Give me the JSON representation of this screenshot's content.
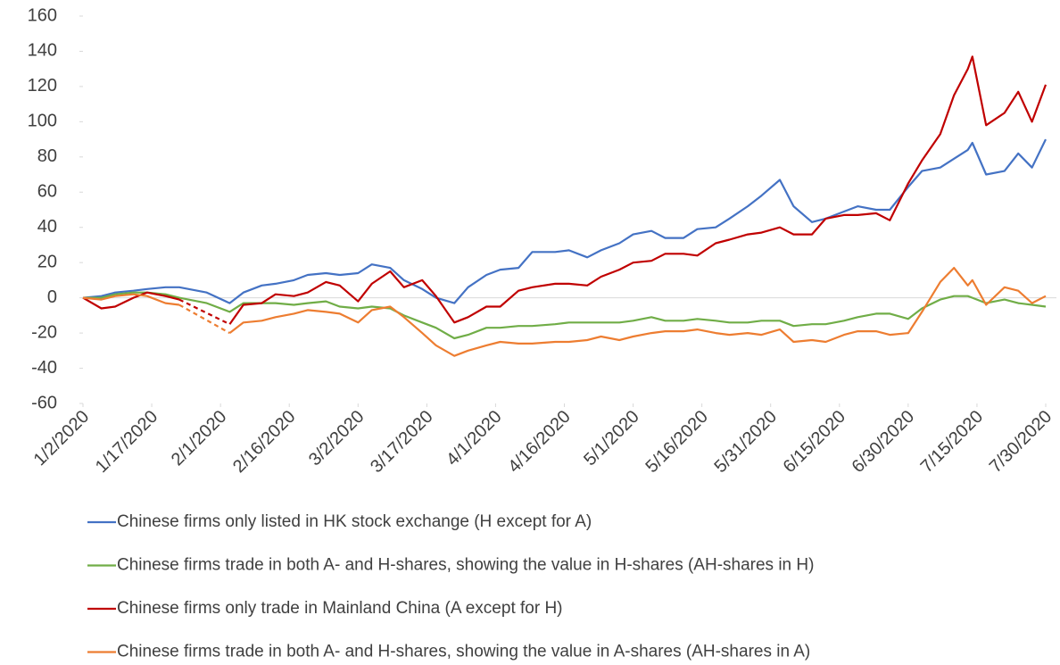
{
  "chart_data": {
    "type": "line",
    "x": [
      "1/2/2020",
      "1/6/2020",
      "1/9/2020",
      "1/13/2020",
      "1/16/2020",
      "1/20/2020",
      "1/23/2020",
      "1/29/2020",
      "2/3/2020",
      "2/6/2020",
      "2/10/2020",
      "2/13/2020",
      "2/17/2020",
      "2/20/2020",
      "2/24/2020",
      "2/27/2020",
      "3/2/2020",
      "3/5/2020",
      "3/9/2020",
      "3/12/2020",
      "3/16/2020",
      "3/19/2020",
      "3/23/2020",
      "3/26/2020",
      "3/30/2020",
      "4/2/2020",
      "4/6/2020",
      "4/9/2020",
      "4/14/2020",
      "4/17/2020",
      "4/21/2020",
      "4/24/2020",
      "4/28/2020",
      "5/1/2020",
      "5/5/2020",
      "5/8/2020",
      "5/12/2020",
      "5/15/2020",
      "5/19/2020",
      "5/22/2020",
      "5/26/2020",
      "5/29/2020",
      "6/2/2020",
      "6/5/2020",
      "6/9/2020",
      "6/12/2020",
      "6/16/2020",
      "6/19/2020",
      "6/23/2020",
      "6/26/2020",
      "6/30/2020",
      "7/3/2020",
      "7/7/2020",
      "7/10/2020",
      "7/13/2020",
      "7/14/2020",
      "7/17/2020",
      "7/21/2020",
      "7/24/2020",
      "7/27/2020",
      "7/30/2020"
    ],
    "series": [
      {
        "name": "Chinese firms only listed in HK stock exchange (H except for A)",
        "color": "#4472c4",
        "values": [
          0,
          1,
          3,
          4,
          5,
          6,
          6,
          3,
          -3,
          3,
          7,
          8,
          10,
          13,
          14,
          13,
          14,
          19,
          17,
          10,
          5,
          0,
          -3,
          6,
          13,
          16,
          17,
          26,
          26,
          27,
          23,
          27,
          31,
          36,
          38,
          34,
          34,
          39,
          40,
          45,
          52,
          58,
          67,
          52,
          43,
          45,
          49,
          52,
          50,
          50,
          63,
          72,
          74,
          79,
          84,
          88,
          70,
          72,
          82,
          74,
          90
        ]
      },
      {
        "name": "Chinese firms trade in both A- and H-shares, showing the value in H-shares (AH-shares in H)",
        "color": "#70ad47",
        "values": [
          0,
          0,
          2,
          3,
          3,
          2,
          0,
          -3,
          -8,
          -3,
          -3,
          -3,
          -4,
          -3,
          -2,
          -5,
          -6,
          -5,
          -6,
          -10,
          -14,
          -17,
          -23,
          -21,
          -17,
          -17,
          -16,
          -16,
          -15,
          -14,
          -14,
          -14,
          -14,
          -13,
          -11,
          -13,
          -13,
          -12,
          -13,
          -14,
          -14,
          -13,
          -13,
          -16,
          -15,
          -15,
          -13,
          -11,
          -9,
          -9,
          -12,
          -6,
          -1,
          1,
          1,
          0,
          -3,
          -1,
          -3,
          -4,
          -5
        ]
      },
      {
        "name": "Chinese firms only trade in Mainland China (A except for H)",
        "color": "#c00000",
        "values": [
          0,
          -6,
          -5,
          0,
          3,
          1,
          -1,
          null,
          -15,
          -4,
          -3,
          2,
          1,
          3,
          9,
          7,
          -2,
          8,
          15,
          6,
          10,
          1,
          -14,
          -11,
          -5,
          -5,
          4,
          6,
          8,
          8,
          7,
          12,
          16,
          20,
          21,
          25,
          25,
          24,
          31,
          33,
          36,
          37,
          40,
          36,
          36,
          45,
          47,
          47,
          48,
          44,
          65,
          78,
          93,
          115,
          130,
          137,
          98,
          105,
          117,
          100,
          121
        ]
      },
      {
        "name": "Chinese firms trade in both A- and H-shares, showing the value in A-shares (AH-shares in A)",
        "color": "#ed7d31",
        "values": [
          0,
          -1,
          1,
          2,
          1,
          -3,
          -4,
          null,
          -20,
          -14,
          -13,
          -11,
          -9,
          -7,
          -8,
          -9,
          -14,
          -7,
          -5,
          -11,
          -20,
          -27,
          -33,
          -30,
          -27,
          -25,
          -26,
          -26,
          -25,
          -25,
          -24,
          -22,
          -24,
          -22,
          -20,
          -19,
          -19,
          -18,
          -20,
          -21,
          -20,
          -21,
          -18,
          -25,
          -24,
          -25,
          -21,
          -19,
          -19,
          -21,
          -20,
          -8,
          9,
          17,
          7,
          10,
          -4,
          6,
          4,
          -3,
          1
        ]
      }
    ],
    "xlim": [
      "1/2/2020",
      "7/30/2020"
    ],
    "xticks": [
      "1/2/2020",
      "1/17/2020",
      "2/1/2020",
      "2/16/2020",
      "3/2/2020",
      "3/17/2020",
      "4/1/2020",
      "4/16/2020",
      "5/1/2020",
      "5/16/2020",
      "5/31/2020",
      "6/15/2020",
      "6/30/2020",
      "7/15/2020",
      "7/30/2020"
    ],
    "ylim": [
      -60,
      160
    ],
    "yticks": [
      -60,
      -40,
      -20,
      0,
      20,
      40,
      60,
      80,
      100,
      120,
      140,
      160
    ],
    "grid": false,
    "legend": "bottom"
  }
}
